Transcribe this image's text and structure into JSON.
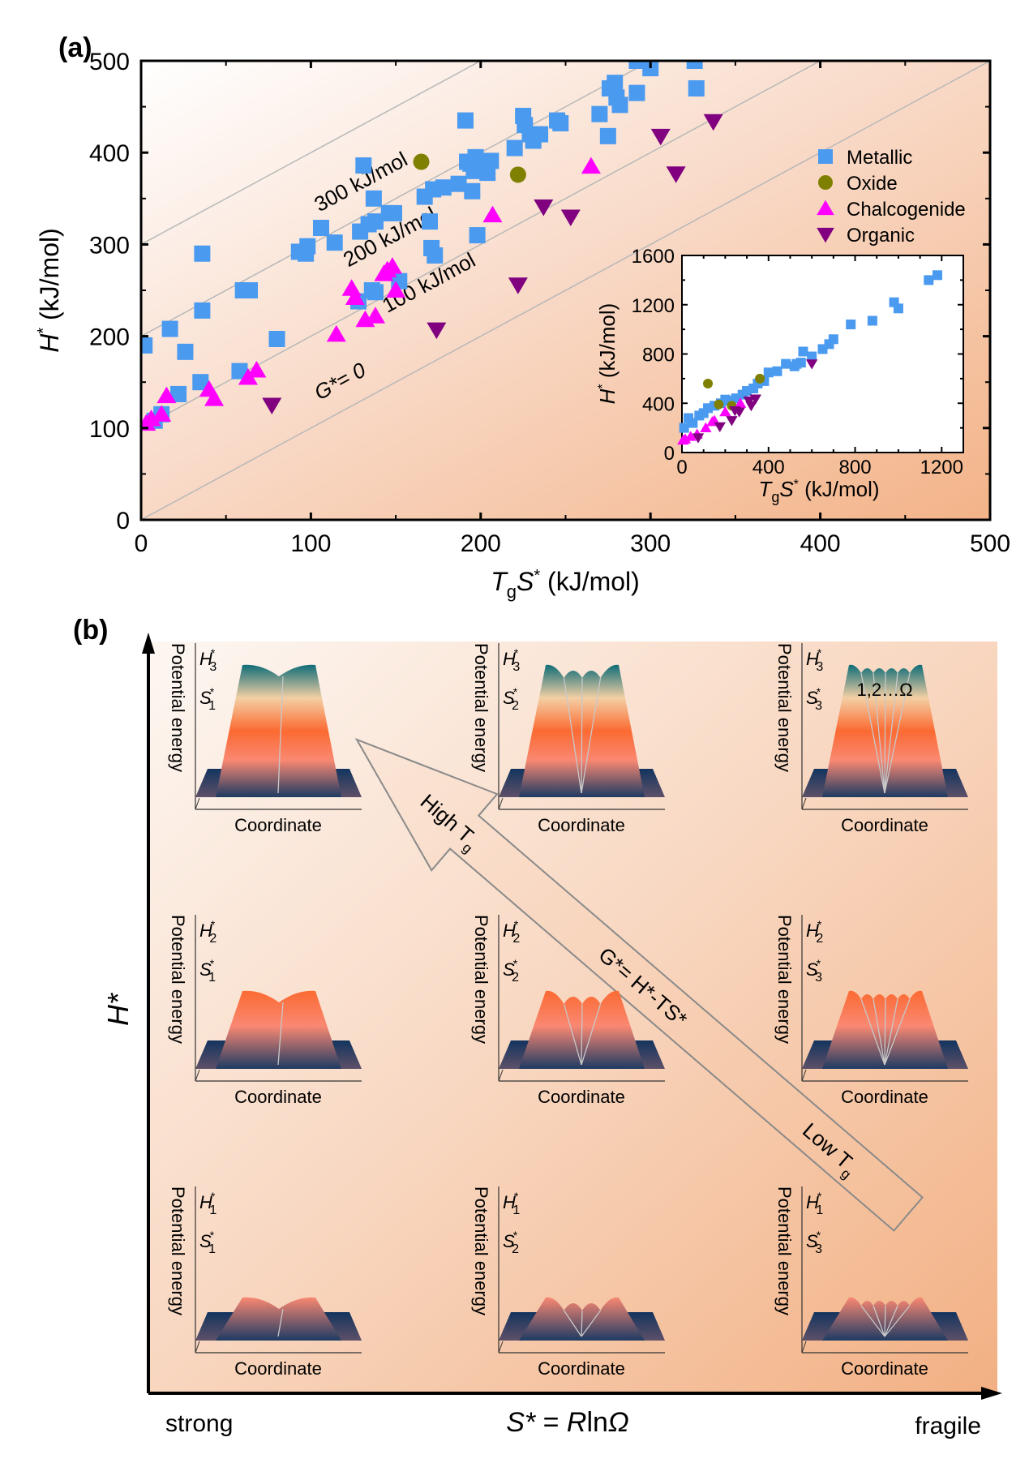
{
  "panel_a": {
    "label": "(a)",
    "iso_lines": [
      {
        "offset": 300,
        "label": "300 kJ/mol"
      },
      {
        "offset": 200,
        "label": "200 kJ/mol"
      },
      {
        "offset": 100,
        "label": "100 kJ/mol"
      },
      {
        "offset": 0,
        "label": "G*= 0"
      }
    ]
  },
  "panel_b": {
    "label": "(b)",
    "y_axis_label": "H*",
    "x_axis_label": "S* = RlnΩ",
    "x_left_label": "strong",
    "x_right_label": "fragile",
    "cell_ylabel": "Potential energy",
    "cell_xlabel": "Coordinate",
    "cells": [
      {
        "row": 0,
        "col": 0,
        "h": "3",
        "s": "1",
        "minima": 2,
        "height_level": 3
      },
      {
        "row": 0,
        "col": 1,
        "h": "3",
        "s": "2",
        "minima": 4,
        "height_level": 3
      },
      {
        "row": 0,
        "col": 2,
        "h": "3",
        "s": "3",
        "minima": 6,
        "height_level": 3,
        "annotation": "1,2…Ω"
      },
      {
        "row": 1,
        "col": 0,
        "h": "2",
        "s": "1",
        "minima": 2,
        "height_level": 2
      },
      {
        "row": 1,
        "col": 1,
        "h": "2",
        "s": "2",
        "minima": 4,
        "height_level": 2
      },
      {
        "row": 1,
        "col": 2,
        "h": "2",
        "s": "3",
        "minima": 6,
        "height_level": 2
      },
      {
        "row": 2,
        "col": 0,
        "h": "1",
        "s": "1",
        "minima": 2,
        "height_level": 1
      },
      {
        "row": 2,
        "col": 1,
        "h": "1",
        "s": "2",
        "minima": 4,
        "height_level": 1
      },
      {
        "row": 2,
        "col": 2,
        "h": "1",
        "s": "3",
        "minima": 6,
        "height_level": 1
      }
    ],
    "arrow": {
      "high_label": "High T",
      "high_sub": "g",
      "formula": "G*= H*-TS*",
      "low_label": "Low T",
      "low_sub": "g"
    }
  },
  "chart_data": [
    {
      "type": "scatter",
      "title": "",
      "xlabel": "TgS* (kJ/mol)",
      "ylabel": "H* (kJ/mol)",
      "xlim": [
        0,
        500
      ],
      "ylim": [
        0,
        500
      ],
      "xticks": [
        0,
        100,
        200,
        300,
        400,
        500
      ],
      "yticks": [
        0,
        100,
        200,
        300,
        400,
        500
      ],
      "grid": false,
      "legend_position": "right",
      "reference_lines": "H* = TgS* + c for c = 0, 100, 200, 300 kJ/mol",
      "series": [
        {
          "name": "Metallic",
          "marker": "square",
          "color": "#4a9af0",
          "points": [
            [
              2,
              190
            ],
            [
              8,
              108
            ],
            [
              12,
              115
            ],
            [
              17,
              208
            ],
            [
              26,
              183
            ],
            [
              22,
              137
            ],
            [
              35,
              150
            ],
            [
              36,
              290
            ],
            [
              36,
              228
            ],
            [
              58,
              162
            ],
            [
              60,
              250
            ],
            [
              64,
              250
            ],
            [
              80,
              197
            ],
            [
              93,
              292
            ],
            [
              97,
              290
            ],
            [
              98,
              298
            ],
            [
              106,
              318
            ],
            [
              114,
              302
            ],
            [
              128,
              238
            ],
            [
              129,
              314
            ],
            [
              131,
              386
            ],
            [
              134,
              322
            ],
            [
              136,
              250
            ],
            [
              137,
              350
            ],
            [
              138,
              325
            ],
            [
              138,
              248
            ],
            [
              146,
              334
            ],
            [
              149,
              334
            ],
            [
              152,
              260
            ],
            [
              167,
              352
            ],
            [
              170,
              325
            ],
            [
              171,
              296
            ],
            [
              172,
              360
            ],
            [
              173,
              288
            ],
            [
              178,
              362
            ],
            [
              187,
              366
            ],
            [
              191,
              435
            ],
            [
              192,
              390
            ],
            [
              194,
              388
            ],
            [
              195,
              358
            ],
            [
              196,
              380
            ],
            [
              197,
              395
            ],
            [
              198,
              310
            ],
            [
              204,
              378
            ],
            [
              206,
              391
            ],
            [
              220,
              405
            ],
            [
              225,
              440
            ],
            [
              226,
              430
            ],
            [
              229,
              420
            ],
            [
              231,
              413
            ],
            [
              235,
              420
            ],
            [
              245,
              435
            ],
            [
              247,
              432
            ],
            [
              270,
              442
            ],
            [
              275,
              418
            ],
            [
              276,
              470
            ],
            [
              279,
              476
            ],
            [
              280,
              460
            ],
            [
              282,
              452
            ],
            [
              292,
              465
            ],
            [
              300,
              492
            ],
            [
              326,
              500
            ],
            [
              327,
              470
            ],
            [
              292,
              500
            ]
          ]
        },
        {
          "name": "Oxide",
          "marker": "circle",
          "color": "#808000",
          "points": [
            [
              165,
              390
            ],
            [
              222,
              376
            ]
          ]
        },
        {
          "name": "Chalcogenide",
          "marker": "triangle-up",
          "color": "#ff00ff",
          "points": [
            [
              3,
              105
            ],
            [
              6,
              110
            ],
            [
              12,
              115
            ],
            [
              15,
              135
            ],
            [
              40,
              142
            ],
            [
              43,
              132
            ],
            [
              63,
              155
            ],
            [
              68,
              163
            ],
            [
              115,
              202
            ],
            [
              124,
              252
            ],
            [
              126,
              242
            ],
            [
              132,
              218
            ],
            [
              138,
              222
            ],
            [
              143,
              268
            ],
            [
              145,
              272
            ],
            [
              148,
              276
            ],
            [
              150,
              250
            ],
            [
              207,
              332
            ],
            [
              265,
              385
            ]
          ]
        },
        {
          "name": "Organic",
          "marker": "triangle-down",
          "color": "#800080",
          "points": [
            [
              77,
              125
            ],
            [
              174,
              207
            ],
            [
              222,
              256
            ],
            [
              237,
              341
            ],
            [
              253,
              330
            ],
            [
              306,
              418
            ],
            [
              315,
              377
            ],
            [
              337,
              434
            ]
          ]
        }
      ]
    },
    {
      "type": "scatter",
      "title": "inset",
      "xlabel": "TgS* (kJ/mol)",
      "ylabel": "H* (kJ/mol)",
      "xlim": [
        0,
        1300
      ],
      "ylim": [
        0,
        1600
      ],
      "xticks": [
        0,
        400,
        800,
        1200
      ],
      "yticks": [
        0,
        400,
        800,
        1200,
        1600
      ],
      "grid": false,
      "series": [
        {
          "name": "Metallic",
          "marker": "square",
          "color": "#4a9af0",
          "points": [
            [
              10,
              200
            ],
            [
              30,
              280
            ],
            [
              50,
              240
            ],
            [
              80,
              300
            ],
            [
              100,
              320
            ],
            [
              120,
              360
            ],
            [
              150,
              380
            ],
            [
              180,
              400
            ],
            [
              200,
              430
            ],
            [
              220,
              420
            ],
            [
              250,
              440
            ],
            [
              280,
              470
            ],
            [
              300,
              500
            ],
            [
              330,
              520
            ],
            [
              350,
              560
            ],
            [
              380,
              580
            ],
            [
              400,
              650
            ],
            [
              440,
              660
            ],
            [
              480,
              720
            ],
            [
              520,
              700
            ],
            [
              530,
              720
            ],
            [
              550,
              730
            ],
            [
              560,
              820
            ],
            [
              600,
              780
            ],
            [
              650,
              840
            ],
            [
              680,
              880
            ],
            [
              700,
              920
            ],
            [
              780,
              1040
            ],
            [
              880,
              1070
            ],
            [
              980,
              1220
            ],
            [
              1000,
              1170
            ],
            [
              1140,
              1400
            ],
            [
              1180,
              1440
            ]
          ]
        },
        {
          "name": "Oxide",
          "marker": "circle",
          "color": "#808000",
          "points": [
            [
              120,
              560
            ],
            [
              170,
              390
            ],
            [
              230,
              380
            ],
            [
              360,
              600
            ]
          ]
        },
        {
          "name": "Chalcogenide",
          "marker": "triangle-up",
          "color": "#ff00ff",
          "points": [
            [
              5,
              100
            ],
            [
              15,
              110
            ],
            [
              40,
              130
            ],
            [
              70,
              150
            ],
            [
              110,
              200
            ],
            [
              140,
              250
            ],
            [
              150,
              260
            ],
            [
              200,
              330
            ],
            [
              270,
              400
            ]
          ]
        },
        {
          "name": "Organic",
          "marker": "triangle-down",
          "color": "#800080",
          "points": [
            [
              75,
              120
            ],
            [
              175,
              210
            ],
            [
              230,
              260
            ],
            [
              245,
              340
            ],
            [
              265,
              330
            ],
            [
              310,
              420
            ],
            [
              320,
              380
            ],
            [
              340,
              435
            ],
            [
              600,
              720
            ]
          ]
        }
      ]
    }
  ]
}
